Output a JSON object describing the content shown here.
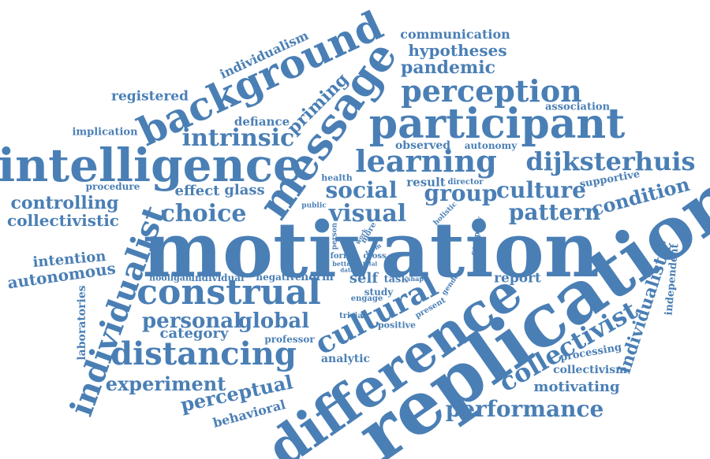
{
  "colors": {
    "word": "#4a7fb5",
    "background": "#ffffff"
  },
  "words": {
    "motivation": "motivation",
    "replication": "replication",
    "difference": "difference",
    "intelligence": "intelligence",
    "participant": "participant",
    "message": "message",
    "background": "background",
    "construal": "construal",
    "individualist": "individualist",
    "distancing": "distancing",
    "cultural": "cultural",
    "perception": "perception",
    "learning": "learning",
    "dijksterhuis": "dijksterhuis",
    "intrinsic": "intrinsic",
    "social": "social",
    "group": "group",
    "culture": "culture",
    "choice": "choice",
    "visual": "visual",
    "pattern": "pattern",
    "condition": "condition",
    "collectivist": "collectivist",
    "personal": "personal",
    "global": "global",
    "performance": "performance",
    "experiment": "experiment",
    "perceptual": "perceptual",
    "individualistic": "individualistic",
    "priming": "priming",
    "pandemic": "pandemic",
    "hypotheses": "hypotheses",
    "communication": "communication",
    "individualism": "individualism",
    "registered": "registered",
    "association": "association",
    "controlling": "controlling",
    "collectivistic": "collectivistic",
    "intention": "intention",
    "autonomous": "autonomous",
    "effect": "effect",
    "glass": "glass",
    "defiance": "defiance",
    "implication": "implication",
    "procedure": "procedure",
    "observed": "observed",
    "autonomy": "autonomy",
    "result": "result",
    "director": "director",
    "supportive": "supportive",
    "health": "health",
    "public": "public",
    "holistic": "holistic",
    "company": "company",
    "person": "person",
    "work": "work",
    "term": "term",
    "more": "more",
    "form": "form",
    "better": "better",
    "data": "data",
    "cross": "cross",
    "total": "total",
    "self": "self",
    "task": "task",
    "shape": "shape",
    "gender": "gender",
    "report": "report",
    "hooligan": "hooligan",
    "individual": "individual",
    "negative": "negative",
    "norm": "norm",
    "study": "study",
    "engage": "engage",
    "present": "present",
    "positive": "positive",
    "trivia": "trivia",
    "category": "category",
    "professor": "professor",
    "analytic": "analytic",
    "laboratories": "laboratories",
    "independent": "independent",
    "processing": "processing",
    "collectivism": "collectivism",
    "motivating": "motivating",
    "behavioral": "behavioral"
  }
}
